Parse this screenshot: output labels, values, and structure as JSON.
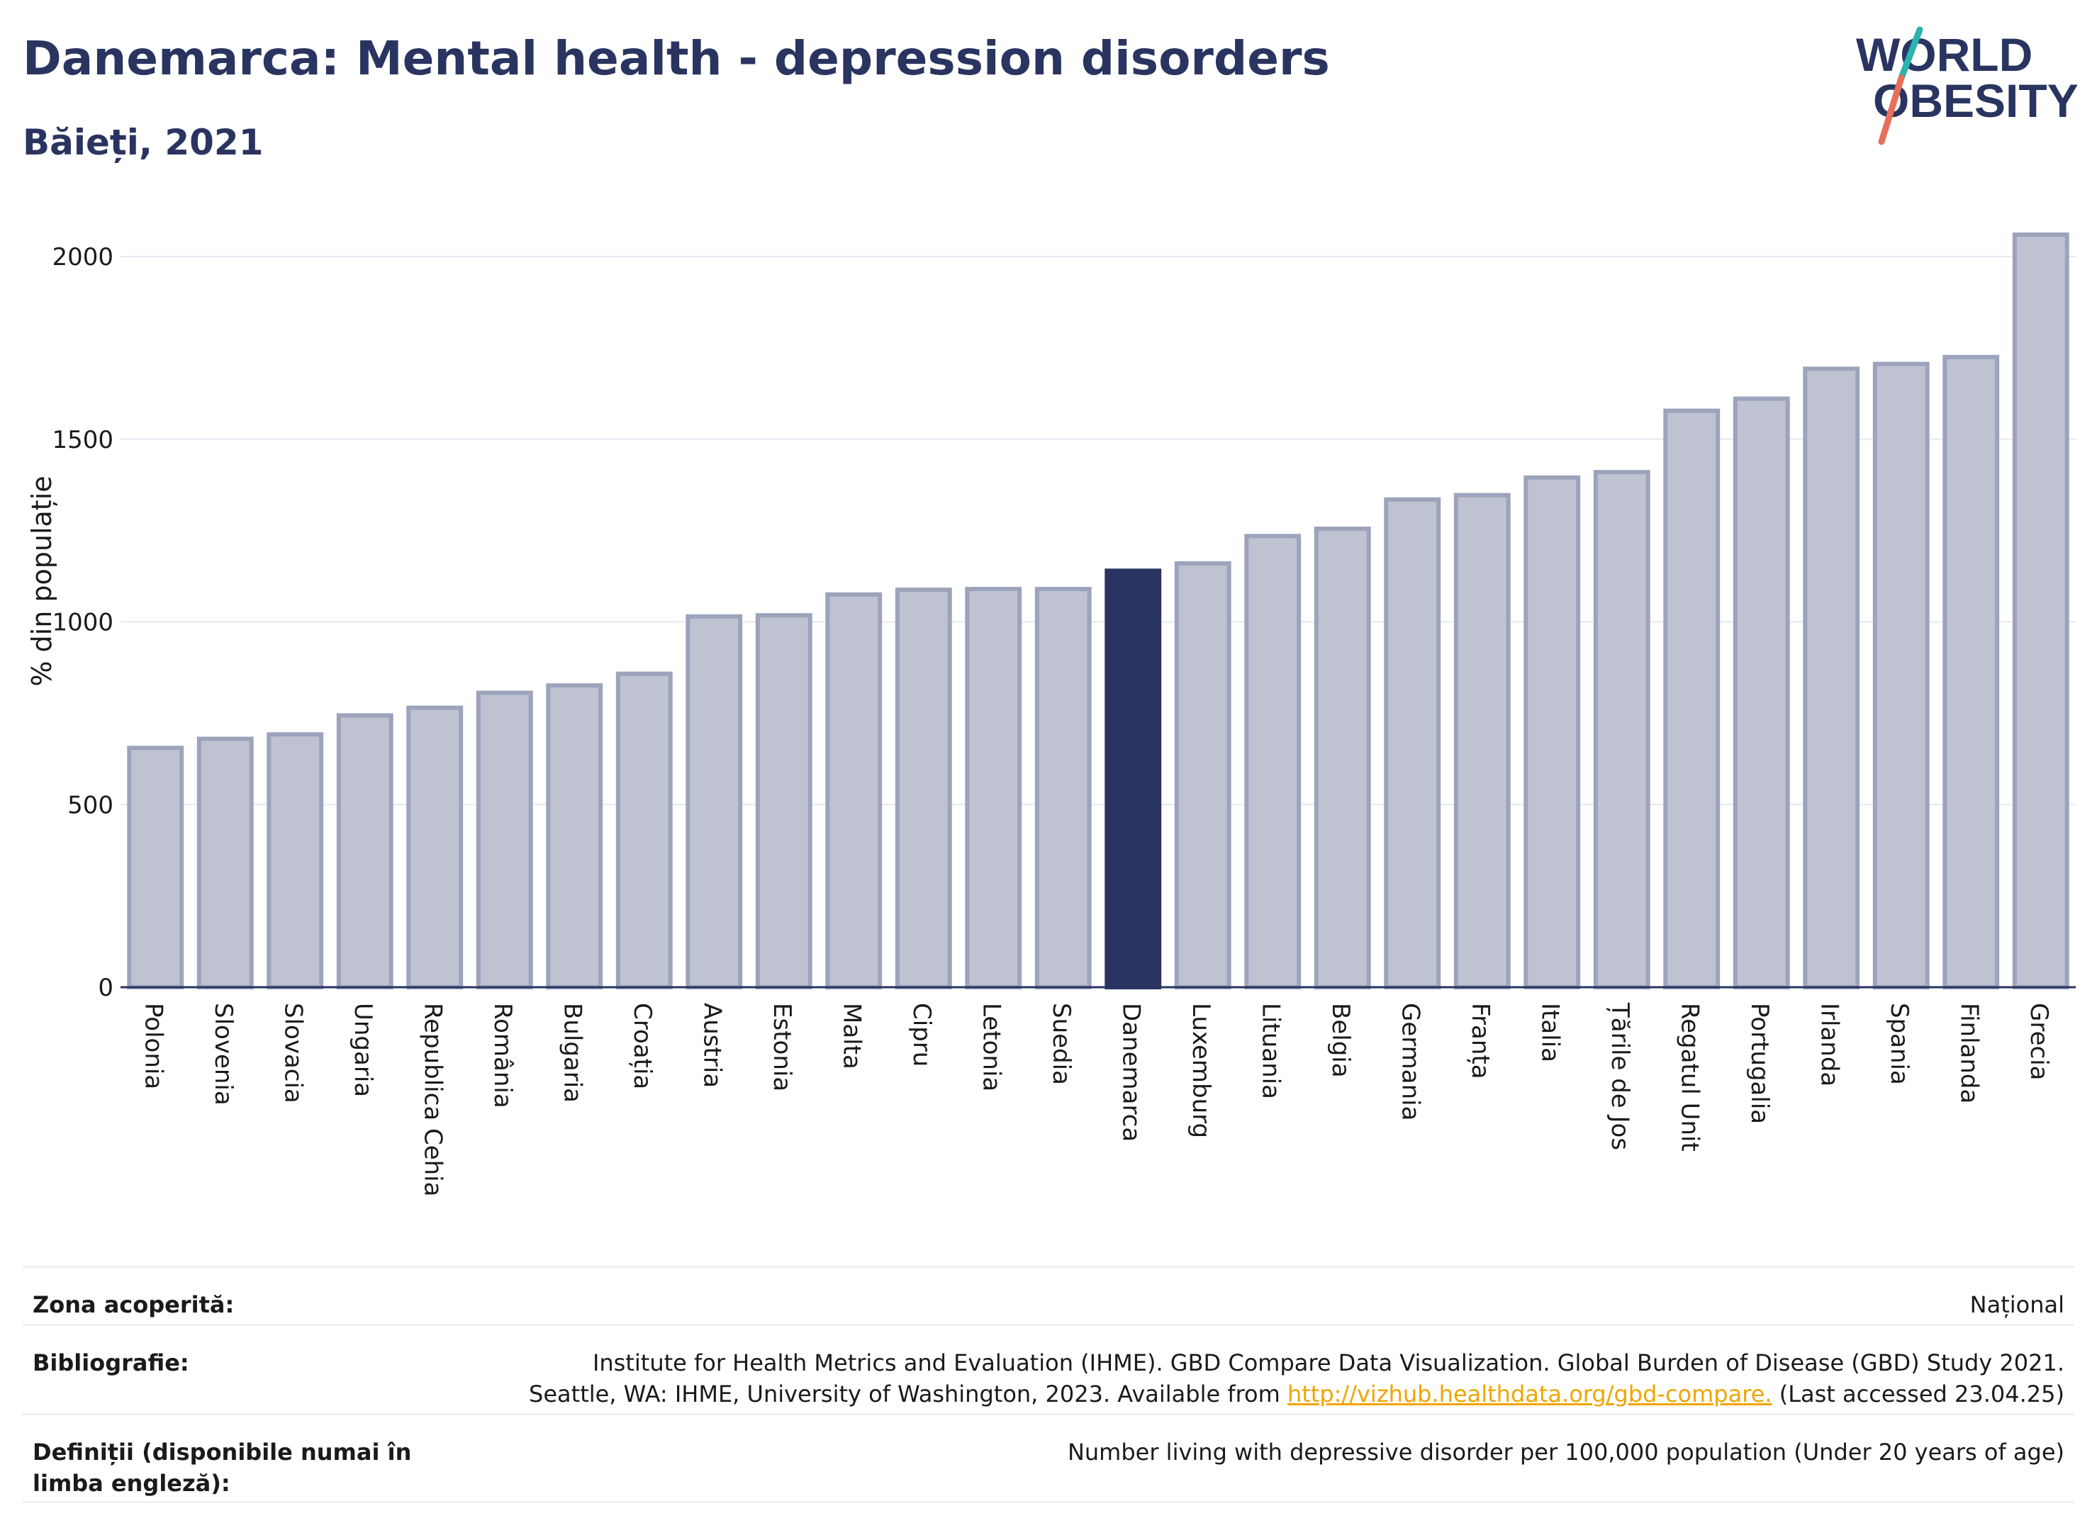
{
  "header": {
    "title": "Danemarca: Mental health - depression disorders",
    "subtitle": "Băieți, 2021"
  },
  "logo": {
    "line1": "WORLD",
    "line2": "OBESITY"
  },
  "colors": {
    "bar": "#bfc3d1",
    "bar_stroke": "#9ca3bb",
    "highlight": "#2a3460",
    "grid": "#e6e8ef",
    "text": "#2a3460",
    "link": "#f0a500",
    "logo_teal": "#2bb3ae",
    "logo_coral": "#e8705a"
  },
  "chart_data": {
    "type": "bar",
    "ylabel": "% din populație",
    "ylim": [
      0,
      2100
    ],
    "yticks": [
      0,
      500,
      1000,
      1500,
      2000
    ],
    "grid": true,
    "highlight": "Danemarca",
    "categories": [
      "Polonia",
      "Slovenia",
      "Slovacia",
      "Ungaria",
      "Republica Cehia",
      "România",
      "Bulgaria",
      "Croația",
      "Austria",
      "Estonia",
      "Malta",
      "Cipru",
      "Letonia",
      "Suedia",
      "Danemarca",
      "Luxemburg",
      "Lituania",
      "Belgia",
      "Germania",
      "Franța",
      "Italia",
      "Țările de Jos",
      "Regatul Unit",
      "Portugalia",
      "Irlanda",
      "Spania",
      "Finlanda",
      "Grecia"
    ],
    "values": [
      655,
      680,
      692,
      744,
      765,
      806,
      826,
      858,
      1015,
      1018,
      1075,
      1088,
      1090,
      1090,
      1140,
      1160,
      1235,
      1255,
      1335,
      1347,
      1395,
      1410,
      1578,
      1611,
      1693,
      1706,
      1725,
      2060
    ]
  },
  "footer": {
    "zona_label": "Zona acoperită:",
    "zona_value": "Național",
    "bib_label": "Bibliografie:",
    "bib_line1": "Institute for Health Metrics and Evaluation (IHME). GBD Compare Data Visualization. Global Burden of Disease (GBD) Study 2021.",
    "bib_line2_pre": "Seattle, WA: IHME, University of Washington, 2023. Available from ",
    "bib_link": "http://vizhub.healthdata.org/gbd-compare.",
    "bib_line2_post": " (Last accessed 23.04.25)",
    "def_label": "Definiții (disponibile numai în limba engleză):",
    "def_value": "Number living with depressive disorder per 100,000 population (Under 20 years of age)"
  }
}
